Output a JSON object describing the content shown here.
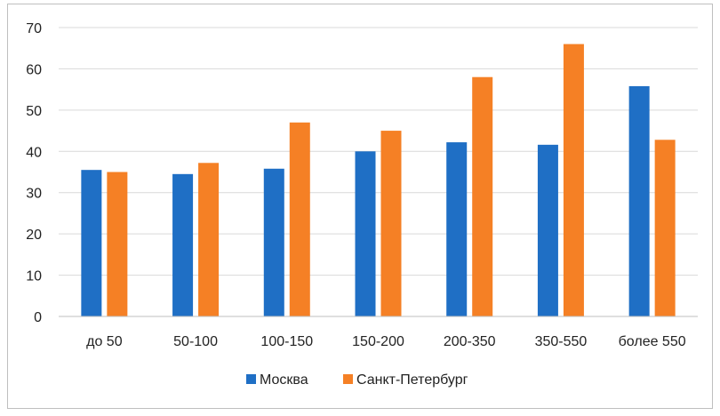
{
  "chart_data": {
    "type": "bar",
    "title": "",
    "xlabel": "",
    "ylabel": "",
    "categories": [
      "до 50",
      "50-100",
      "100-150",
      "150-200",
      "200-350",
      "350-550",
      "более 550"
    ],
    "series": [
      {
        "name": "Москва",
        "color": "#1f6fc5",
        "values": [
          35.5,
          34.5,
          35.8,
          40.0,
          42.2,
          41.6,
          55.8
        ]
      },
      {
        "name": "Санкт-Петербург",
        "color": "#f58025",
        "values": [
          35.0,
          37.2,
          47.0,
          45.0,
          58.0,
          66.0,
          42.8
        ]
      }
    ],
    "ylim": [
      0,
      70
    ],
    "yticks": [
      0,
      10,
      20,
      30,
      40,
      50,
      60,
      70
    ],
    "grid": true,
    "legend_position": "bottom"
  }
}
